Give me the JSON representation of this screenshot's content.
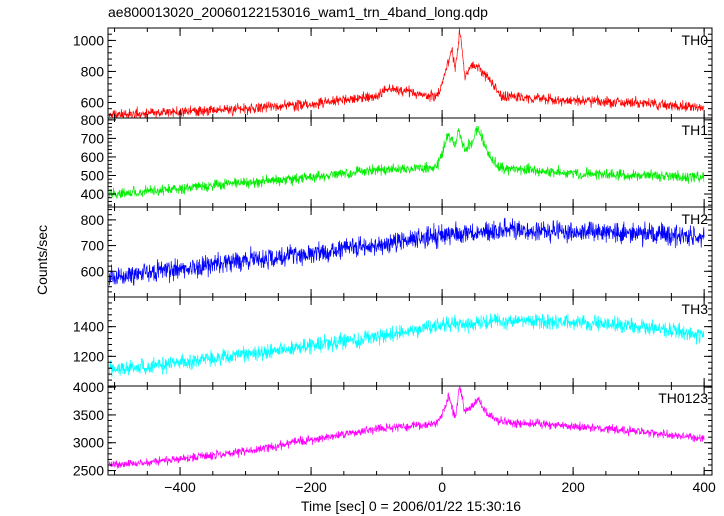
{
  "chart_data": {
    "type": "line",
    "title": "ae800013020_20060122153016_wam1_trn_4band_long.qdp",
    "xlabel": "Time [sec] 0 = 2006/01/22 15:30:16",
    "ylabel": "Counts/sec",
    "xlim": [
      -510,
      412
    ],
    "xticks": [
      "−400",
      "−200",
      "0",
      "200",
      "400"
    ],
    "xtick_values": [
      -400,
      -200,
      0,
      200,
      400
    ],
    "grid": false,
    "panels": [
      {
        "name": "TH0",
        "color": "#ff0000",
        "ylim": [
          500,
          1080
        ],
        "yticks": [
          "600",
          "800",
          "1000"
        ],
        "ytick_values": [
          600,
          800,
          1000
        ],
        "curve": [
          [
            -500,
            520
          ],
          [
            -400,
            540
          ],
          [
            -300,
            560
          ],
          [
            -200,
            590
          ],
          [
            -100,
            640
          ],
          [
            -80,
            690
          ],
          [
            -50,
            670
          ],
          [
            -20,
            640
          ],
          [
            -5,
            650
          ],
          [
            5,
            800
          ],
          [
            15,
            950
          ],
          [
            20,
            820
          ],
          [
            27,
            1060
          ],
          [
            35,
            760
          ],
          [
            45,
            850
          ],
          [
            55,
            830
          ],
          [
            70,
            760
          ],
          [
            90,
            640
          ],
          [
            200,
            610
          ],
          [
            300,
            600
          ],
          [
            400,
            560
          ]
        ],
        "noise": 25
      },
      {
        "name": "TH1",
        "color": "#00ee00",
        "ylim": [
          330,
          810
        ],
        "yticks": [
          "400",
          "500",
          "600",
          "700",
          "800"
        ],
        "ytick_values": [
          400,
          500,
          600,
          700,
          800
        ],
        "curve": [
          [
            -500,
            400
          ],
          [
            -400,
            430
          ],
          [
            -300,
            460
          ],
          [
            -200,
            490
          ],
          [
            -100,
            530
          ],
          [
            -10,
            540
          ],
          [
            0,
            620
          ],
          [
            10,
            720
          ],
          [
            20,
            660
          ],
          [
            25,
            750
          ],
          [
            35,
            640
          ],
          [
            45,
            680
          ],
          [
            55,
            760
          ],
          [
            70,
            610
          ],
          [
            90,
            540
          ],
          [
            200,
            510
          ],
          [
            300,
            500
          ],
          [
            400,
            490
          ]
        ],
        "noise": 22
      },
      {
        "name": "TH2",
        "color": "#0000ff",
        "ylim": [
          500,
          850
        ],
        "yticks": [
          "600",
          "700",
          "800"
        ],
        "ytick_values": [
          600,
          700,
          800
        ],
        "curve": [
          [
            -500,
            580
          ],
          [
            -400,
            610
          ],
          [
            -300,
            640
          ],
          [
            -200,
            670
          ],
          [
            -100,
            700
          ],
          [
            0,
            740
          ],
          [
            100,
            760
          ],
          [
            200,
            755
          ],
          [
            300,
            750
          ],
          [
            400,
            730
          ]
        ],
        "noise": 30
      },
      {
        "name": "TH3",
        "color": "#00ffff",
        "ylim": [
          1000,
          1600
        ],
        "yticks": [
          "1200",
          "1400"
        ],
        "ytick_values": [
          1200,
          1400
        ],
        "curve": [
          [
            -500,
            1110
          ],
          [
            -400,
            1160
          ],
          [
            -300,
            1210
          ],
          [
            -200,
            1270
          ],
          [
            -100,
            1330
          ],
          [
            0,
            1410
          ],
          [
            100,
            1440
          ],
          [
            200,
            1430
          ],
          [
            300,
            1400
          ],
          [
            400,
            1340
          ]
        ],
        "noise": 40
      },
      {
        "name": "TH0123",
        "color": "#ff00ff",
        "ylim": [
          2420,
          4020
        ],
        "yticks": [
          "2500",
          "3000",
          "3500",
          "4000"
        ],
        "ytick_values": [
          2500,
          3000,
          3500,
          4000
        ],
        "curve": [
          [
            -500,
            2600
          ],
          [
            -400,
            2700
          ],
          [
            -300,
            2850
          ],
          [
            -200,
            3050
          ],
          [
            -100,
            3250
          ],
          [
            -10,
            3340
          ],
          [
            0,
            3500
          ],
          [
            10,
            3850
          ],
          [
            20,
            3450
          ],
          [
            27,
            4000
          ],
          [
            35,
            3550
          ],
          [
            45,
            3650
          ],
          [
            55,
            3800
          ],
          [
            70,
            3500
          ],
          [
            90,
            3380
          ],
          [
            200,
            3300
          ],
          [
            300,
            3200
          ],
          [
            400,
            3080
          ]
        ],
        "noise": 60
      }
    ]
  }
}
